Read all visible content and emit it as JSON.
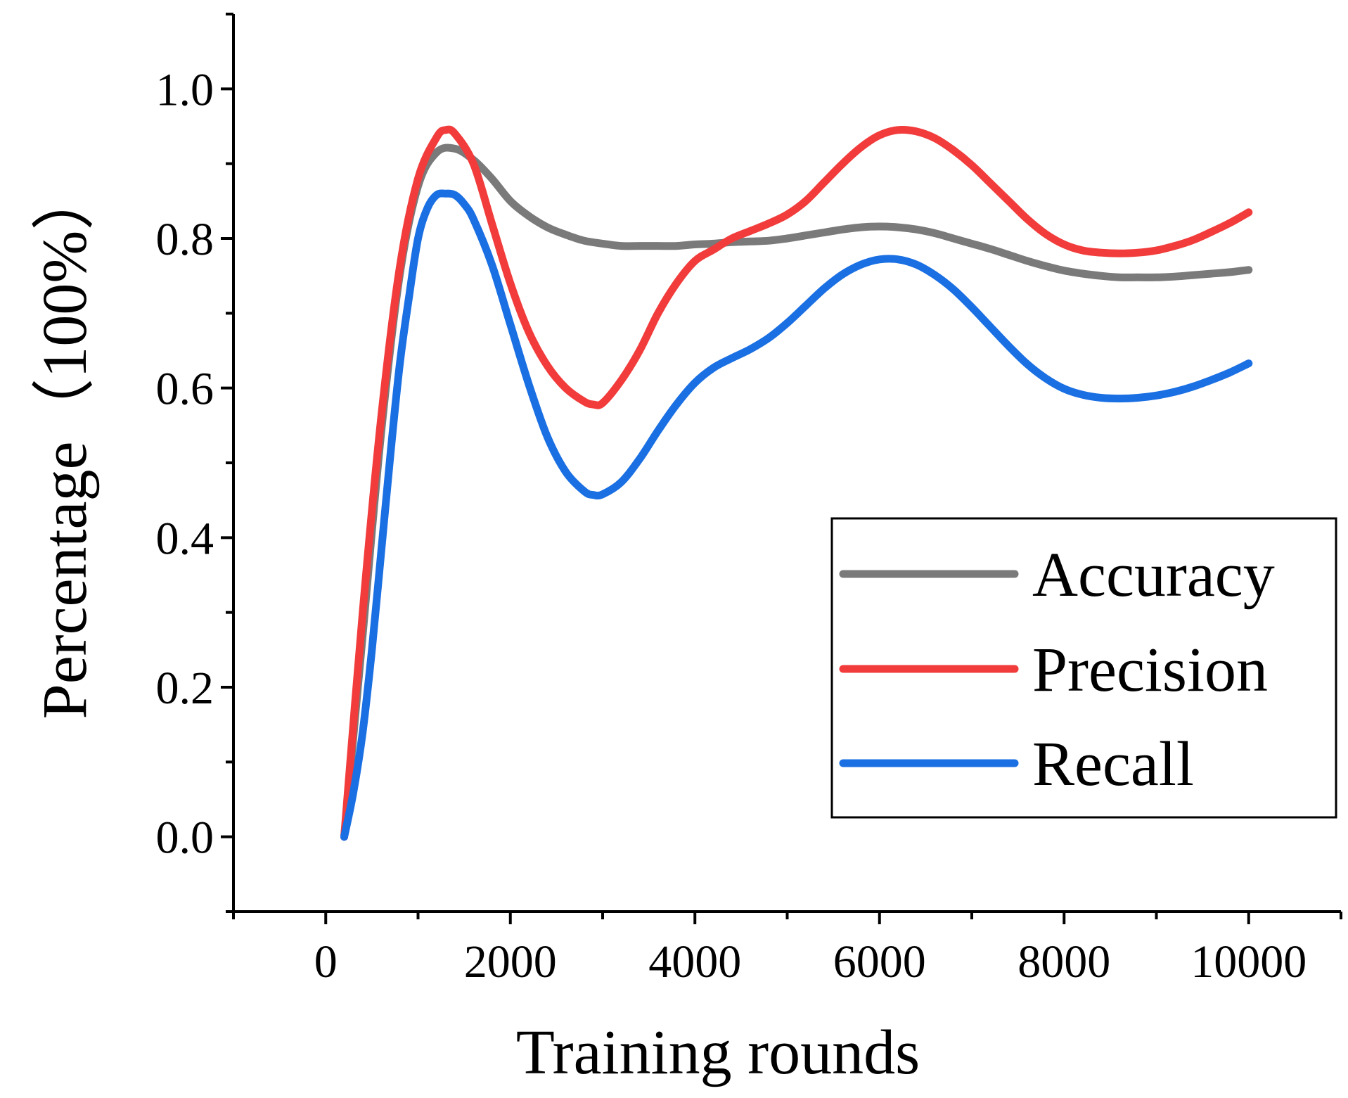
{
  "chart_data": {
    "type": "line",
    "title": "",
    "xlabel": "Training rounds",
    "ylabel": "Percentage（100%）",
    "xlim": [
      -1000,
      11000
    ],
    "ylim": [
      -0.1,
      1.1
    ],
    "xticks": [
      0,
      2000,
      4000,
      6000,
      8000,
      10000
    ],
    "xtick_labels": [
      "0",
      "2000",
      "4000",
      "6000",
      "8000",
      "10000"
    ],
    "yticks": [
      0.0,
      0.2,
      0.4,
      0.6,
      0.8,
      1.0
    ],
    "ytick_labels": [
      "0.0",
      "0.2",
      "0.4",
      "0.6",
      "0.8",
      "1.0"
    ],
    "grid": false,
    "legend_position": "lower-right",
    "series": [
      {
        "name": "Accuracy",
        "color": "#7a7a7a",
        "x": [
          200,
          400,
          600,
          800,
          1000,
          1200,
          1400,
          1600,
          1800,
          2000,
          2200,
          2400,
          2600,
          2800,
          3000,
          3200,
          3400,
          3600,
          3800,
          4000,
          4200,
          4400,
          4600,
          4800,
          5000,
          5200,
          5400,
          5600,
          5800,
          6000,
          6200,
          6400,
          6600,
          6800,
          7000,
          7200,
          7400,
          7600,
          7800,
          8000,
          8200,
          8400,
          8600,
          8800,
          9000,
          9200,
          9400,
          9600,
          9800,
          10000
        ],
        "y": [
          0.0,
          0.27,
          0.54,
          0.75,
          0.87,
          0.915,
          0.92,
          0.905,
          0.88,
          0.85,
          0.83,
          0.815,
          0.805,
          0.797,
          0.793,
          0.79,
          0.79,
          0.79,
          0.79,
          0.792,
          0.793,
          0.795,
          0.796,
          0.797,
          0.8,
          0.804,
          0.808,
          0.812,
          0.815,
          0.816,
          0.815,
          0.812,
          0.807,
          0.8,
          0.793,
          0.786,
          0.778,
          0.77,
          0.763,
          0.757,
          0.753,
          0.75,
          0.748,
          0.748,
          0.748,
          0.749,
          0.751,
          0.753,
          0.755,
          0.758
        ]
      },
      {
        "name": "Precision",
        "color": "#f23b3b",
        "x": [
          200,
          400,
          600,
          800,
          1000,
          1200,
          1300,
          1400,
          1600,
          1800,
          2000,
          2200,
          2400,
          2600,
          2800,
          2900,
          3000,
          3200,
          3400,
          3600,
          3800,
          4000,
          4200,
          4400,
          4600,
          4800,
          5000,
          5200,
          5400,
          5600,
          5800,
          6000,
          6200,
          6400,
          6600,
          6800,
          7000,
          7200,
          7400,
          7600,
          7800,
          8000,
          8200,
          8400,
          8600,
          8800,
          9000,
          9200,
          9400,
          9600,
          9800,
          10000
        ],
        "y": [
          0.0,
          0.3,
          0.56,
          0.76,
          0.88,
          0.935,
          0.945,
          0.94,
          0.9,
          0.82,
          0.74,
          0.675,
          0.63,
          0.6,
          0.582,
          0.578,
          0.58,
          0.61,
          0.65,
          0.7,
          0.74,
          0.77,
          0.785,
          0.8,
          0.81,
          0.82,
          0.832,
          0.85,
          0.875,
          0.9,
          0.922,
          0.938,
          0.945,
          0.943,
          0.934,
          0.918,
          0.898,
          0.874,
          0.85,
          0.826,
          0.806,
          0.792,
          0.784,
          0.781,
          0.78,
          0.781,
          0.784,
          0.79,
          0.798,
          0.809,
          0.821,
          0.835
        ]
      },
      {
        "name": "Recall",
        "color": "#1a6fe3",
        "x": [
          200,
          300,
          400,
          500,
          600,
          700,
          800,
          900,
          1000,
          1100,
          1200,
          1300,
          1400,
          1500,
          1600,
          1800,
          2000,
          2200,
          2400,
          2600,
          2800,
          2900,
          3000,
          3200,
          3400,
          3600,
          3800,
          4000,
          4200,
          4400,
          4600,
          4800,
          5000,
          5200,
          5400,
          5600,
          5800,
          6000,
          6200,
          6400,
          6600,
          6800,
          7000,
          7200,
          7400,
          7600,
          7800,
          8000,
          8200,
          8400,
          8600,
          8800,
          9000,
          9200,
          9400,
          9600,
          9800,
          10000
        ],
        "y": [
          0.0,
          0.06,
          0.14,
          0.25,
          0.38,
          0.51,
          0.63,
          0.72,
          0.8,
          0.84,
          0.858,
          0.86,
          0.858,
          0.846,
          0.826,
          0.765,
          0.685,
          0.605,
          0.535,
          0.488,
          0.462,
          0.457,
          0.458,
          0.474,
          0.505,
          0.543,
          0.578,
          0.607,
          0.627,
          0.64,
          0.652,
          0.667,
          0.687,
          0.71,
          0.733,
          0.752,
          0.765,
          0.772,
          0.772,
          0.765,
          0.751,
          0.732,
          0.708,
          0.682,
          0.656,
          0.632,
          0.613,
          0.599,
          0.591,
          0.587,
          0.586,
          0.587,
          0.59,
          0.595,
          0.602,
          0.611,
          0.621,
          0.633
        ]
      }
    ]
  }
}
